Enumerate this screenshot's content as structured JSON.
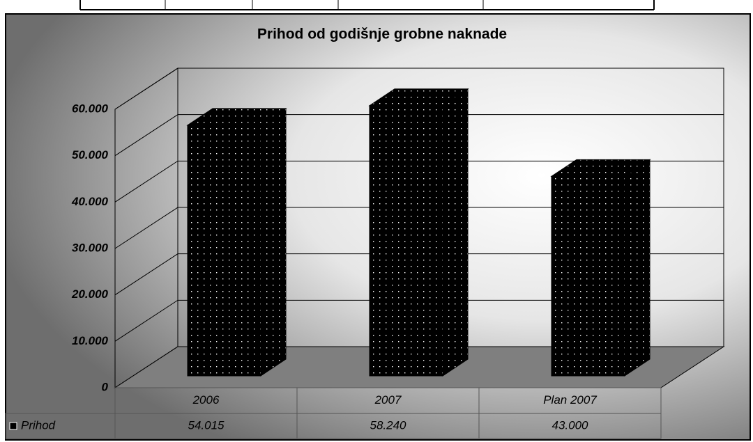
{
  "chart_data": {
    "type": "bar3d",
    "title": "Prihod od godišnje grobne naknade",
    "categories": [
      "2006",
      "2007",
      "Plan 2007"
    ],
    "series": [
      {
        "name": "Prihod",
        "color": "#000000",
        "values": [
          54015,
          58240,
          43000
        ],
        "value_labels": [
          "54.015",
          "58.240",
          "43.000"
        ]
      }
    ],
    "ylim": [
      0,
      60000
    ],
    "yticks": [
      0,
      {
        "value": 10000,
        "label": "10.000"
      },
      {
        "value": 20000,
        "label": "20.000"
      },
      {
        "value": 30000,
        "label": "30.000"
      },
      {
        "value": 40000,
        "label": "40.000"
      },
      {
        "value": 50000,
        "label": "50.000"
      },
      {
        "value": 60000,
        "label": "60.000"
      }
    ],
    "grid": true,
    "data_table": true
  }
}
